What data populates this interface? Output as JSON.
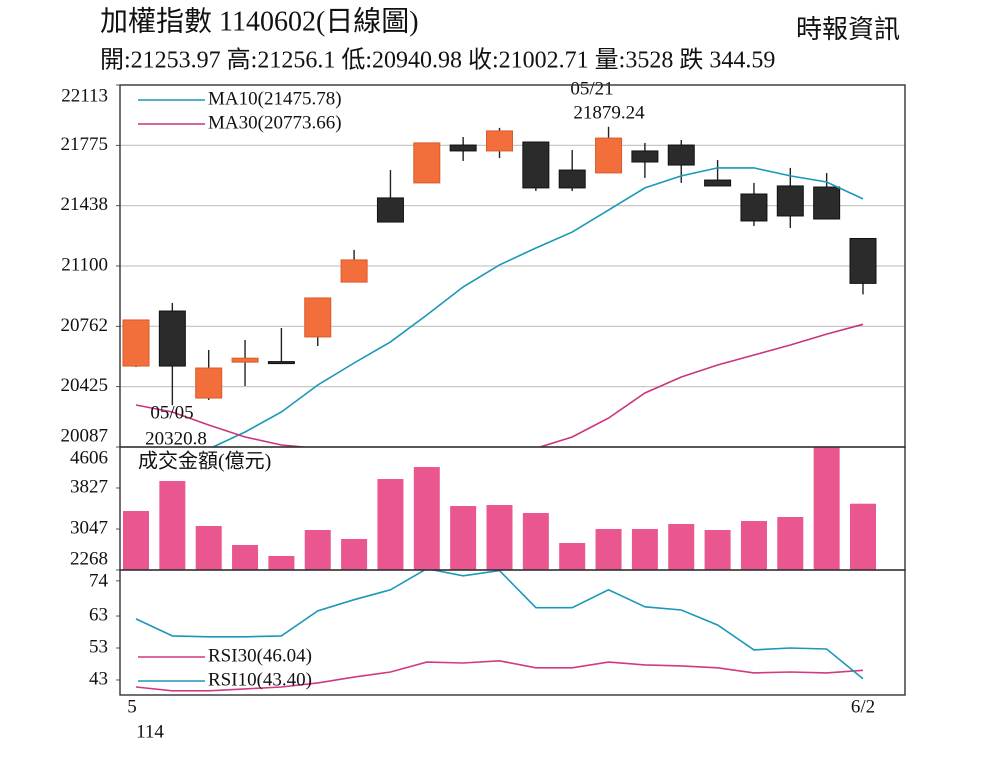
{
  "header": {
    "title": "加權指數 1140602(日線圖)",
    "source": "時報資訊",
    "summary": "開:21253.97 高:21256.1 低:20940.98 收:21002.71 量:3528 跌 344.59"
  },
  "chart_data": [
    {
      "type": "candlestick",
      "open": [
        20540,
        20848,
        20361,
        20562,
        20565,
        20703,
        21010,
        21481,
        21565,
        21777,
        21744,
        21794,
        21637,
        21621,
        21744,
        21777,
        21581,
        21503,
        21548,
        21542,
        21253.97
      ],
      "high": [
        20800,
        20893,
        20630,
        20686,
        20753,
        20921,
        21190,
        21637,
        21789,
        21822,
        21873,
        21794,
        21749,
        21879.24,
        21789,
        21805,
        21693,
        21565,
        21649,
        21620,
        21256.1
      ],
      "low": [
        20535,
        20320.8,
        20350,
        20428,
        20552,
        20652,
        21010,
        21346,
        21565,
        21688,
        21704,
        21520,
        21520,
        21621,
        21593,
        21565,
        21548,
        21324,
        21313,
        21363,
        20940.98
      ],
      "close": [
        20798,
        20540,
        20529,
        20584,
        20560,
        20921,
        21134,
        21346,
        21789,
        21744,
        21856,
        21537,
        21537,
        21816,
        21682,
        21665,
        21548,
        21352,
        21380,
        21363,
        21002.71
      ],
      "up_color": "#f26f3c",
      "down_color": "#2b2b2b",
      "series": [
        {
          "name": "MA10(21475.78)",
          "color": "#1a98b8",
          "values": [
            null,
            null,
            20076,
            20171,
            20283,
            20434,
            20557,
            20675,
            20826,
            20983,
            21106,
            21201,
            21290,
            21413,
            21537,
            21604,
            21649,
            21649,
            21604,
            21570,
            21475.78
          ]
        },
        {
          "name": "MA30(20773.66)",
          "color": "#c8357f",
          "values": [
            20322,
            20283,
            20210,
            20143,
            20098,
            20080,
            20070,
            20065,
            20060,
            20065,
            20075,
            20080,
            20143,
            20249,
            20389,
            20479,
            20546,
            20602,
            20658,
            20719,
            20773.66
          ]
        }
      ],
      "annotations": [
        "05/05",
        "05/21"
      ],
      "ylim": [
        20087,
        22113
      ],
      "yticks": [
        20087,
        20425,
        20762,
        21100,
        21438,
        21775,
        22113
      ],
      "grid": true
    },
    {
      "type": "bar",
      "title": "成交金額(億元)",
      "color": "#ea5690",
      "values": [
        3389,
        3959,
        3104,
        2743,
        2534,
        3028,
        2857,
        3997,
        4225,
        3484,
        3503,
        3351,
        2781,
        3047,
        3047,
        3142,
        3028,
        3199,
        3275,
        4650,
        3528
      ],
      "ylim": [
        2268,
        4606
      ],
      "yticks": [
        2268,
        3047,
        3827,
        4606
      ],
      "grid": false
    },
    {
      "type": "line",
      "categories": [
        "5",
        null,
        null,
        null,
        null,
        null,
        null,
        null,
        null,
        null,
        null,
        null,
        null,
        null,
        null,
        null,
        null,
        null,
        null,
        null,
        "6/2"
      ],
      "x_sub_label": "114",
      "series": [
        {
          "name": "RSI30(46.04)",
          "color": "#d23a80",
          "values": [
            40.8,
            39.6,
            39.6,
            40.2,
            40.8,
            42.1,
            43.9,
            45.5,
            48.6,
            48.3,
            49.0,
            46.8,
            46.8,
            48.6,
            47.7,
            47.4,
            46.8,
            45.2,
            45.5,
            45.2,
            46.04
          ]
        },
        {
          "name": "RSI10(43.40)",
          "color": "#1a98b8",
          "values": [
            62.1,
            56.8,
            56.5,
            56.5,
            56.8,
            64.6,
            68.1,
            71.2,
            77.8,
            75.6,
            77.2,
            65.6,
            65.6,
            71.2,
            65.9,
            64.9,
            60.2,
            52.4,
            53.0,
            52.7,
            43.4
          ]
        }
      ],
      "ylim": [
        38.3,
        77.4
      ],
      "yticks": [
        43,
        53,
        63,
        74
      ],
      "grid": false
    }
  ]
}
